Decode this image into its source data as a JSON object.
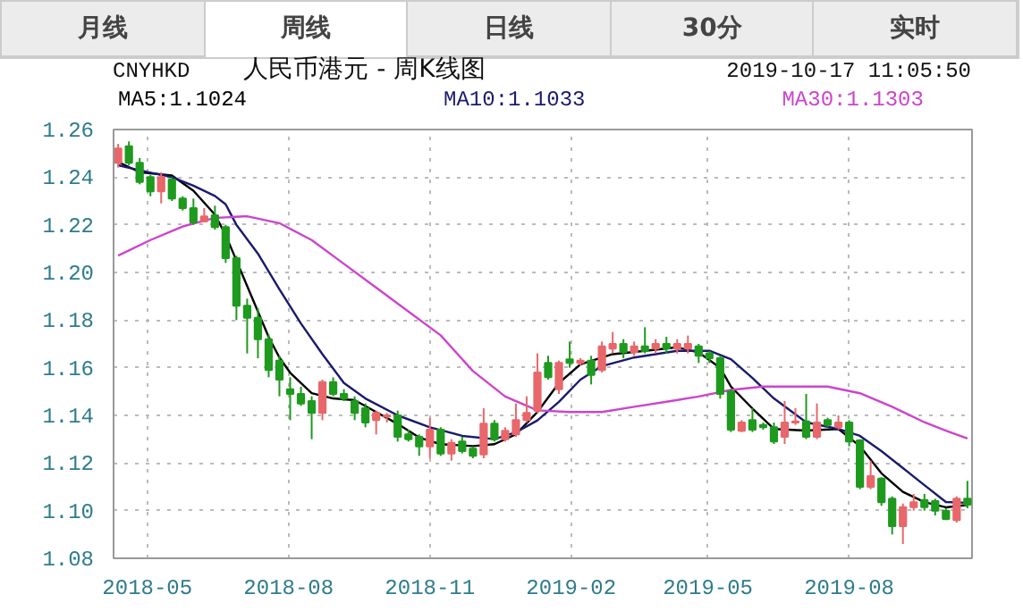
{
  "chart_data": {
    "type": "candlestick",
    "title": "人民币港元 - 周K线图",
    "subtitle": "CNYHKD",
    "annotations": [
      "月线",
      "周线",
      "日线",
      "30分",
      "实时",
      "2019-10-17 11:05:50"
    ],
    "x": [
      "2018-04-12",
      "2018-04-19",
      "2018-04-26",
      "2018-05-03",
      "2018-05-10",
      "2018-05-17",
      "2018-05-24",
      "2018-05-31",
      "2018-06-07",
      "2018-06-14",
      "2018-06-21",
      "2018-06-28",
      "2018-07-05",
      "2018-07-12",
      "2018-07-19",
      "2018-07-26",
      "2018-08-02",
      "2018-08-09",
      "2018-08-16",
      "2018-08-23",
      "2018-08-30",
      "2018-09-06",
      "2018-09-13",
      "2018-09-20",
      "2018-09-27",
      "2018-10-04",
      "2018-10-11",
      "2018-10-18",
      "2018-10-25",
      "2018-11-01",
      "2018-11-08",
      "2018-11-15",
      "2018-11-22",
      "2018-11-29",
      "2018-12-06",
      "2018-12-13",
      "2018-12-20",
      "2018-12-27",
      "2019-01-03",
      "2019-01-10",
      "2019-01-17",
      "2019-01-24",
      "2019-01-31",
      "2019-02-07",
      "2019-02-14",
      "2019-02-21",
      "2019-02-28",
      "2019-03-07",
      "2019-03-14",
      "2019-03-21",
      "2019-03-28",
      "2019-04-04",
      "2019-04-11",
      "2019-04-18",
      "2019-04-25",
      "2019-05-02",
      "2019-05-09",
      "2019-05-16",
      "2019-05-23",
      "2019-05-30",
      "2019-06-06",
      "2019-06-13",
      "2019-06-20",
      "2019-06-27",
      "2019-07-04",
      "2019-07-11",
      "2019-07-18",
      "2019-07-25",
      "2019-08-01",
      "2019-08-08",
      "2019-08-15",
      "2019-08-22",
      "2019-08-29",
      "2019-09-05",
      "2019-09-12",
      "2019-09-19",
      "2019-09-26",
      "2019-10-03",
      "2019-10-10",
      "2019-10-17"
    ],
    "ohlc": [
      [
        1.246,
        1.254,
        1.244,
        1.252
      ],
      [
        1.253,
        1.255,
        1.245,
        1.246
      ],
      [
        1.246,
        1.248,
        1.237,
        1.238
      ],
      [
        1.24,
        1.241,
        1.232,
        1.234
      ],
      [
        1.234,
        1.242,
        1.229,
        1.24
      ],
      [
        1.239,
        1.24,
        1.23,
        1.231
      ],
      [
        1.231,
        1.232,
        1.226,
        1.227
      ],
      [
        1.227,
        1.231,
        1.22,
        1.221
      ],
      [
        1.2215,
        1.227,
        1.221,
        1.2235
      ],
      [
        1.224,
        1.228,
        1.218,
        1.219
      ],
      [
        1.219,
        1.22,
        1.204,
        1.206
      ],
      [
        1.206,
        1.207,
        1.18,
        1.186
      ],
      [
        1.186,
        1.189,
        1.166,
        1.181
      ],
      [
        1.181,
        1.185,
        1.164,
        1.172
      ],
      [
        1.172,
        1.174,
        1.156,
        1.159
      ],
      [
        1.163,
        1.165,
        1.148,
        1.155
      ],
      [
        1.151,
        1.156,
        1.138,
        1.149
      ],
      [
        1.149,
        1.152,
        1.144,
        1.145
      ],
      [
        1.146,
        1.148,
        1.13,
        1.141
      ],
      [
        1.141,
        1.155,
        1.138,
        1.154
      ],
      [
        1.154,
        1.156,
        1.148,
        1.149
      ],
      [
        1.149,
        1.151,
        1.146,
        1.147
      ],
      [
        1.146,
        1.148,
        1.138,
        1.141
      ],
      [
        1.143,
        1.145,
        1.135,
        1.137
      ],
      [
        1.138,
        1.142,
        1.132,
        1.141
      ],
      [
        1.1395,
        1.141,
        1.137,
        1.14
      ],
      [
        1.14,
        1.142,
        1.129,
        1.131
      ],
      [
        1.132,
        1.134,
        1.129,
        1.13
      ],
      [
        1.131,
        1.132,
        1.123,
        1.127
      ],
      [
        1.127,
        1.139,
        1.122,
        1.134
      ],
      [
        1.134,
        1.135,
        1.123,
        1.124
      ],
      [
        1.124,
        1.13,
        1.121,
        1.1285
      ],
      [
        1.129,
        1.131,
        1.124,
        1.125
      ],
      [
        1.126,
        1.127,
        1.122,
        1.123
      ],
      [
        1.1236,
        1.143,
        1.122,
        1.1365
      ],
      [
        1.1365,
        1.138,
        1.129,
        1.13
      ],
      [
        1.13,
        1.135,
        1.129,
        1.1335
      ],
      [
        1.132,
        1.145,
        1.131,
        1.138
      ],
      [
        1.138,
        1.148,
        1.137,
        1.141
      ],
      [
        1.142,
        1.166,
        1.141,
        1.158
      ],
      [
        1.162,
        1.165,
        1.155,
        1.156
      ],
      [
        1.151,
        1.163,
        1.149,
        1.162
      ],
      [
        1.1635,
        1.171,
        1.16,
        1.162
      ],
      [
        1.162,
        1.164,
        1.161,
        1.163
      ],
      [
        1.163,
        1.165,
        1.153,
        1.157
      ],
      [
        1.159,
        1.171,
        1.158,
        1.169
      ],
      [
        1.168,
        1.175,
        1.166,
        1.17
      ],
      [
        1.17,
        1.172,
        1.164,
        1.1665
      ],
      [
        1.1665,
        1.171,
        1.165,
        1.169
      ],
      [
        1.169,
        1.177,
        1.166,
        1.167
      ],
      [
        1.168,
        1.172,
        1.166,
        1.17
      ],
      [
        1.17,
        1.173,
        1.166,
        1.168
      ],
      [
        1.168,
        1.172,
        1.166,
        1.17
      ],
      [
        1.168,
        1.1735,
        1.166,
        1.17
      ],
      [
        1.169,
        1.17,
        1.162,
        1.165
      ],
      [
        1.166,
        1.167,
        1.162,
        1.164
      ],
      [
        1.164,
        1.165,
        1.147,
        1.149
      ],
      [
        1.15,
        1.151,
        1.133,
        1.134
      ],
      [
        1.1335,
        1.138,
        1.133,
        1.137
      ],
      [
        1.138,
        1.143,
        1.133,
        1.134
      ],
      [
        1.136,
        1.137,
        1.134,
        1.135
      ],
      [
        1.135,
        1.137,
        1.128,
        1.129
      ],
      [
        1.131,
        1.146,
        1.128,
        1.137
      ],
      [
        1.137,
        1.143,
        1.136,
        1.1375
      ],
      [
        1.1375,
        1.149,
        1.13,
        1.131
      ],
      [
        1.131,
        1.145,
        1.13,
        1.137
      ],
      [
        1.138,
        1.139,
        1.135,
        1.136
      ],
      [
        1.135,
        1.14,
        1.134,
        1.137
      ],
      [
        1.137,
        1.138,
        1.127,
        1.129
      ],
      [
        1.1295,
        1.13,
        1.109,
        1.11
      ],
      [
        1.11,
        1.121,
        1.109,
        1.1145
      ],
      [
        1.1135,
        1.114,
        1.102,
        1.1035
      ],
      [
        1.105,
        1.106,
        1.09,
        1.0935
      ],
      [
        1.0935,
        1.103,
        1.086,
        1.1015
      ],
      [
        1.1015,
        1.107,
        1.1,
        1.1035
      ],
      [
        1.1045,
        1.107,
        1.1,
        1.1015
      ],
      [
        1.104,
        1.105,
        1.098,
        1.1
      ],
      [
        1.1,
        1.101,
        1.096,
        1.0965
      ],
      [
        1.096,
        1.106,
        1.095,
        1.105
      ],
      [
        1.105,
        1.1125,
        1.101,
        1.1025
      ]
    ],
    "colors": [
      "#e8676b",
      "#1e9a1e",
      "#1e9a1e",
      "#1e9a1e",
      "#e8676b",
      "#1e9a1e",
      "#1e9a1e",
      "#1e9a1e",
      "#e8676b",
      "#1e9a1e",
      "#1e9a1e",
      "#1e9a1e",
      "#1e9a1e",
      "#1e9a1e",
      "#1e9a1e",
      "#1e9a1e",
      "#1e9a1e",
      "#1e9a1e",
      "#1e9a1e",
      "#e8676b",
      "#1e9a1e",
      "#1e9a1e",
      "#1e9a1e",
      "#1e9a1e",
      "#e8676b",
      "#e8676b",
      "#1e9a1e",
      "#1e9a1e",
      "#1e9a1e",
      "#e8676b",
      "#1e9a1e",
      "#e8676b",
      "#1e9a1e",
      "#1e9a1e",
      "#e8676b",
      "#1e9a1e",
      "#e8676b",
      "#e8676b",
      "#e8676b",
      "#e8676b",
      "#1e9a1e",
      "#e8676b",
      "#1e9a1e",
      "#e8676b",
      "#1e9a1e",
      "#e8676b",
      "#e8676b",
      "#1e9a1e",
      "#e8676b",
      "#1e9a1e",
      "#e8676b",
      "#1e9a1e",
      "#e8676b",
      "#e8676b",
      "#1e9a1e",
      "#1e9a1e",
      "#1e9a1e",
      "#1e9a1e",
      "#e8676b",
      "#1e9a1e",
      "#1e9a1e",
      "#1e9a1e",
      "#e8676b",
      "#e8676b",
      "#1e9a1e",
      "#e8676b",
      "#1e9a1e",
      "#e8676b",
      "#1e9a1e",
      "#1e9a1e",
      "#e8676b",
      "#1e9a1e",
      "#1e9a1e",
      "#e8676b",
      "#e8676b",
      "#1e9a1e",
      "#1e9a1e",
      "#1e9a1e",
      "#e8676b",
      "#1e9a1e"
    ],
    "series": [
      {
        "type": "line",
        "name": "MA5:1.1024",
        "color": "#000000",
        "x": [
          "2018-04-12",
          "2018-04-26",
          "2018-05-17",
          "2018-05-31",
          "2018-06-14",
          "2018-06-21",
          "2018-07-05",
          "2018-07-19",
          "2018-07-26",
          "2018-08-02",
          "2018-08-16",
          "2018-08-30",
          "2018-09-13",
          "2018-09-27",
          "2018-10-11",
          "2018-10-25",
          "2018-11-08",
          "2018-11-29",
          "2018-12-13",
          "2018-12-27",
          "2019-01-10",
          "2019-01-24",
          "2019-02-07",
          "2019-02-28",
          "2019-03-21",
          "2019-04-11",
          "2019-04-25",
          "2019-05-09",
          "2019-05-16",
          "2019-05-30",
          "2019-06-13",
          "2019-07-04",
          "2019-07-25",
          "2019-08-08",
          "2019-08-22",
          "2019-09-05",
          "2019-09-19",
          "2019-10-03",
          "2019-10-17"
        ],
        "values": [
          1.2464,
          1.2421,
          1.2407,
          1.2343,
          1.2243,
          1.2157,
          1.1943,
          1.1729,
          1.1643,
          1.1579,
          1.1493,
          1.1471,
          1.1464,
          1.1414,
          1.1364,
          1.1307,
          1.1279,
          1.1271,
          1.1279,
          1.1321,
          1.1414,
          1.1536,
          1.1614,
          1.1657,
          1.1671,
          1.1686,
          1.1664,
          1.16,
          1.1521,
          1.1429,
          1.1343,
          1.1336,
          1.1343,
          1.1271,
          1.1157,
          1.1079,
          1.1036,
          1.1014,
          1.1024
        ]
      },
      {
        "type": "line",
        "name": "MA10:1.1033",
        "color": "#1a1a6e",
        "x": [
          "2018-04-12",
          "2018-04-26",
          "2018-05-17",
          "2018-05-31",
          "2018-06-14",
          "2018-06-21",
          "2018-06-28",
          "2018-07-12",
          "2018-07-26",
          "2018-08-09",
          "2018-08-23",
          "2018-09-06",
          "2018-09-20",
          "2018-10-11",
          "2018-11-01",
          "2018-11-22",
          "2018-12-13",
          "2018-12-27",
          "2019-01-10",
          "2019-01-24",
          "2019-02-07",
          "2019-02-21",
          "2019-03-14",
          "2019-04-11",
          "2019-05-02",
          "2019-05-16",
          "2019-05-30",
          "2019-06-13",
          "2019-07-04",
          "2019-07-25",
          "2019-08-08",
          "2019-08-22",
          "2019-09-05",
          "2019-09-19",
          "2019-10-03",
          "2019-10-17"
        ],
        "values": [
          1.245,
          1.2429,
          1.24,
          1.2364,
          1.2321,
          1.2286,
          1.22,
          1.2079,
          1.1929,
          1.1786,
          1.1657,
          1.1536,
          1.1471,
          1.14,
          1.135,
          1.1314,
          1.13,
          1.1329,
          1.1379,
          1.1457,
          1.155,
          1.1607,
          1.1643,
          1.1671,
          1.1671,
          1.1636,
          1.1557,
          1.1471,
          1.1371,
          1.1343,
          1.1314,
          1.125,
          1.1179,
          1.1107,
          1.1036,
          1.1033
        ]
      },
      {
        "type": "line",
        "name": "MA30:1.1303",
        "color": "#cc44cc",
        "x": [
          "2018-04-12",
          "2018-05-03",
          "2018-05-24",
          "2018-06-14",
          "2018-07-05",
          "2018-07-26",
          "2018-08-16",
          "2018-09-06",
          "2018-09-27",
          "2018-10-18",
          "2018-11-08",
          "2018-11-29",
          "2018-12-20",
          "2019-01-10",
          "2019-01-31",
          "2019-02-21",
          "2019-03-14",
          "2019-04-04",
          "2019-04-25",
          "2019-05-16",
          "2019-06-06",
          "2019-06-27",
          "2019-07-18",
          "2019-08-08",
          "2019-08-29",
          "2019-09-19",
          "2019-10-03",
          "2019-10-17"
        ],
        "values": [
          1.2071,
          1.2136,
          1.2193,
          1.2229,
          1.2236,
          1.2207,
          1.2136,
          1.2036,
          1.1936,
          1.1836,
          1.1736,
          1.1586,
          1.1479,
          1.1421,
          1.1414,
          1.1414,
          1.1436,
          1.1457,
          1.1479,
          1.1507,
          1.1521,
          1.1521,
          1.1521,
          1.1493,
          1.1436,
          1.1371,
          1.1336,
          1.1303
        ]
      }
    ],
    "xlim": [
      "2018-04-09",
      "2019-10-20"
    ],
    "xticks": [
      "2018-05",
      "2018-08",
      "2018-11",
      "2019-02",
      "2019-05",
      "2019-08"
    ],
    "ylim": [
      1.08,
      1.26
    ],
    "yticks": [
      1.08,
      {
        "value": 1.1,
        "label": "1.10"
      },
      1.12,
      1.14,
      1.16,
      1.18,
      {
        "value": 1.2,
        "label": "1.20"
      },
      1.22,
      1.24,
      1.26
    ],
    "grid": true,
    "legend": "top left"
  }
}
